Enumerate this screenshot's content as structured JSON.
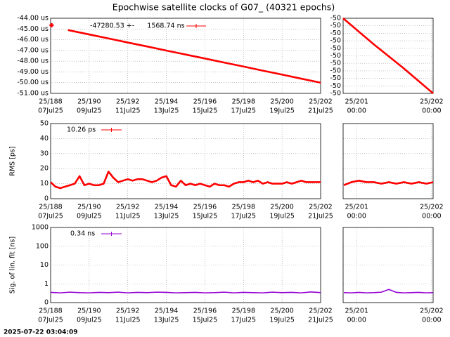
{
  "title": "Epochwise satellite clocks of G07_ (40321 epochs)",
  "timestamp": "2025-07-22 03:04:09",
  "chart_data": [
    {
      "type": "line",
      "grid": true,
      "log_y": false,
      "show_ytick_labels": true,
      "xlim": [
        188,
        202
      ],
      "ylim": [
        -51,
        -44
      ],
      "xticks": [
        {
          "value": 188,
          "label": "25/188"
        },
        {
          "value": 190,
          "label": "25/190"
        },
        {
          "value": 192,
          "label": "25/192"
        },
        {
          "value": 194,
          "label": "25/194"
        },
        {
          "value": 196,
          "label": "25/196"
        },
        {
          "value": 198,
          "label": "25/198"
        },
        {
          "value": 200,
          "label": "25/200"
        },
        {
          "value": 202,
          "label": "25/202"
        }
      ],
      "xtick_sublabels": [
        "07Jul25",
        "09Jul25",
        "11Jul25",
        "13Jul25",
        "15Jul25",
        "17Jul25",
        "19Jul25",
        "21Jul25"
      ],
      "yticks": [
        {
          "value": -44,
          "label": "-44.00 us"
        },
        {
          "value": -45,
          "label": "-45.00 us"
        },
        {
          "value": -46,
          "label": "-46.00 us"
        },
        {
          "value": -47,
          "label": "-47.00 us"
        },
        {
          "value": -48,
          "label": "-48.00 us"
        },
        {
          "value": -49,
          "label": "-49.00 us"
        },
        {
          "value": -50,
          "label": "-50.00 us"
        },
        {
          "value": -51,
          "label": "-51.00 us"
        }
      ],
      "series": [
        {
          "name": "-47280.53 +-      1568.74 ns",
          "color": "#ff0000",
          "x": [
            188.05,
            188.5,
            188.9,
            190,
            191,
            192,
            193,
            194,
            195,
            196,
            197,
            198,
            199,
            200,
            201,
            202
          ],
          "values": [
            -44.65,
            null,
            -45.1,
            -45.51,
            -45.88,
            -46.26,
            -46.63,
            -47.01,
            -47.38,
            -47.75,
            -48.13,
            -48.5,
            -48.88,
            -49.25,
            -49.63,
            -50.0
          ]
        }
      ]
    },
    {
      "type": "line",
      "grid": true,
      "log_y": false,
      "show_ytick_labels": true,
      "xlim": [
        200.82,
        202.02
      ],
      "ylim": [
        -50.05,
        -49.55
      ],
      "xticks": [
        {
          "value": 201,
          "label": "25/201"
        },
        {
          "value": 202,
          "label": "25/202"
        }
      ],
      "xtick_sublabels": [
        "00:00",
        "00:00"
      ],
      "yticks": [
        {
          "value": -49.55,
          "label": "-50"
        },
        {
          "value": -49.6,
          "label": "-50"
        },
        {
          "value": -49.65,
          "label": "-50"
        },
        {
          "value": -49.7,
          "label": "-50"
        },
        {
          "value": -49.75,
          "label": "-50"
        },
        {
          "value": -49.8,
          "label": "-50"
        },
        {
          "value": -49.85,
          "label": "-50"
        },
        {
          "value": -49.9,
          "label": "-50"
        },
        {
          "value": -49.95,
          "label": "-50"
        },
        {
          "value": -50,
          "label": "-50"
        },
        {
          "value": -50.05,
          "label": "-50"
        }
      ],
      "series": [
        {
          "color": "#ff0000",
          "x": [
            200.82,
            201.22,
            201.62,
            202.02
          ],
          "values": [
            -49.55,
            -49.72,
            -49.88,
            -50.05
          ]
        }
      ]
    },
    {
      "type": "line",
      "grid": true,
      "log_y": false,
      "show_ytick_labels": true,
      "ylabel": "RMS [ps]",
      "xlim": [
        188,
        202
      ],
      "ylim": [
        0,
        50
      ],
      "xticks": [
        {
          "value": 188,
          "label": "25/188"
        },
        {
          "value": 190,
          "label": "25/190"
        },
        {
          "value": 192,
          "label": "25/192"
        },
        {
          "value": 194,
          "label": "25/194"
        },
        {
          "value": 196,
          "label": "25/196"
        },
        {
          "value": 198,
          "label": "25/198"
        },
        {
          "value": 200,
          "label": "25/200"
        },
        {
          "value": 202,
          "label": "25/202"
        }
      ],
      "xtick_sublabels": [
        "07Jul25",
        "09Jul25",
        "11Jul25",
        "13Jul25",
        "15Jul25",
        "17Jul25",
        "19Jul25",
        "21Jul25"
      ],
      "yticks": [
        0,
        10,
        20,
        30,
        40,
        50
      ],
      "series": [
        {
          "name": "10.26 ps",
          "color": "#ff0000",
          "x": [
            188,
            188.25,
            188.5,
            188.75,
            189,
            189.25,
            189.5,
            189.75,
            190,
            190.25,
            190.5,
            190.75,
            191,
            191.25,
            191.5,
            191.75,
            192,
            192.25,
            192.5,
            192.75,
            193,
            193.25,
            193.5,
            193.75,
            194,
            194.25,
            194.5,
            194.75,
            195,
            195.25,
            195.5,
            195.75,
            196,
            196.25,
            196.5,
            196.75,
            197,
            197.25,
            197.5,
            197.75,
            198,
            198.25,
            198.5,
            198.75,
            199,
            199.25,
            199.5,
            199.75,
            200,
            200.25,
            200.5,
            200.75,
            201,
            201.25,
            201.5,
            201.75,
            202
          ],
          "values": [
            11,
            8,
            7,
            8,
            9,
            10,
            15,
            9,
            10,
            9,
            9,
            10,
            18,
            14,
            11,
            12,
            13,
            12,
            13,
            13,
            12,
            11,
            12,
            14,
            15,
            9,
            8,
            12,
            9,
            10,
            9,
            10,
            9,
            8,
            10,
            9,
            9,
            8,
            10,
            11,
            11,
            12,
            11,
            12,
            10,
            11,
            10,
            10,
            10,
            11,
            10,
            11,
            12,
            11,
            11,
            11,
            11
          ]
        }
      ]
    },
    {
      "type": "line",
      "grid": true,
      "log_y": false,
      "show_ytick_labels": false,
      "xlim": [
        200.82,
        202.02
      ],
      "ylim": [
        0,
        50
      ],
      "xticks": [
        {
          "value": 201,
          "label": "25/201"
        },
        {
          "value": 202,
          "label": "25/202"
        }
      ],
      "xtick_sublabels": [
        "00:00",
        "00:00"
      ],
      "yticks": [
        0,
        10,
        20,
        30,
        40,
        50
      ],
      "series": [
        {
          "color": "#ff0000",
          "x": [
            200.83,
            200.93,
            201.03,
            201.13,
            201.23,
            201.33,
            201.43,
            201.53,
            201.63,
            201.73,
            201.83,
            201.93,
            202.02
          ],
          "values": [
            9,
            11,
            12,
            11,
            11,
            10,
            11,
            10,
            11,
            10,
            11,
            10,
            11
          ]
        }
      ]
    },
    {
      "type": "line",
      "grid": true,
      "log_y": true,
      "show_ytick_labels": true,
      "ylabel": "Sig. of lin. fit [ns]",
      "xlim": [
        188,
        202
      ],
      "ylim": [
        0.1,
        1000
      ],
      "xticks": [
        {
          "value": 188,
          "label": "25/188"
        },
        {
          "value": 190,
          "label": "25/190"
        },
        {
          "value": 192,
          "label": "25/192"
        },
        {
          "value": 194,
          "label": "25/194"
        },
        {
          "value": 196,
          "label": "25/196"
        },
        {
          "value": 198,
          "label": "25/198"
        },
        {
          "value": 200,
          "label": "25/200"
        },
        {
          "value": 202,
          "label": "25/202"
        }
      ],
      "xtick_sublabels": [
        "07Jul25",
        "09Jul25",
        "11Jul25",
        "13Jul25",
        "15Jul25",
        "17Jul25",
        "19Jul25",
        "21Jul25"
      ],
      "yticks": [
        {
          "value": 0.1,
          "label": "0"
        },
        1,
        10,
        100,
        1000
      ],
      "series": [
        {
          "name": "0.34 ns",
          "color": "#9400d3",
          "x": [
            188,
            188.5,
            189,
            189.5,
            190,
            190.5,
            191,
            191.5,
            192,
            192.5,
            193,
            193.5,
            194,
            194.5,
            195,
            195.5,
            196,
            196.5,
            197,
            197.5,
            198,
            198.5,
            199,
            199.5,
            200,
            200.5,
            201,
            201.5,
            202
          ],
          "values": [
            0.35,
            0.33,
            0.36,
            0.34,
            0.33,
            0.35,
            0.34,
            0.36,
            0.33,
            0.35,
            0.34,
            0.36,
            0.35,
            0.33,
            0.34,
            0.35,
            0.33,
            0.34,
            0.36,
            0.33,
            0.35,
            0.34,
            0.33,
            0.36,
            0.34,
            0.35,
            0.33,
            0.37,
            0.34
          ]
        }
      ]
    },
    {
      "type": "line",
      "grid": true,
      "log_y": true,
      "show_ytick_labels": false,
      "xlim": [
        200.82,
        202.02
      ],
      "ylim": [
        0.1,
        1000
      ],
      "xticks": [
        {
          "value": 201,
          "label": "25/201"
        },
        {
          "value": 202,
          "label": "25/202"
        }
      ],
      "xtick_sublabels": [
        "00:00",
        "00:00"
      ],
      "yticks": [
        {
          "value": 0.1,
          "label": "0"
        },
        1,
        10,
        100,
        1000
      ],
      "series": [
        {
          "color": "#9400d3",
          "x": [
            200.83,
            200.93,
            201.03,
            201.13,
            201.23,
            201.33,
            201.43,
            201.53,
            201.63,
            201.73,
            201.83,
            201.93,
            202.02
          ],
          "values": [
            0.34,
            0.33,
            0.35,
            0.33,
            0.34,
            0.36,
            0.5,
            0.35,
            0.33,
            0.34,
            0.35,
            0.33,
            0.34
          ]
        }
      ]
    }
  ]
}
